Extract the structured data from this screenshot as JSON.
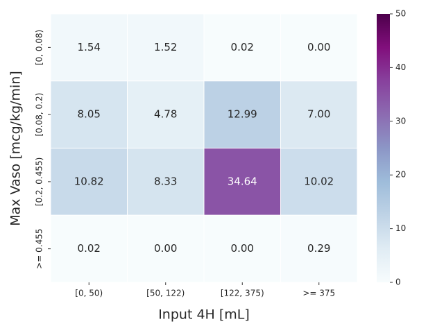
{
  "chart_data": {
    "type": "heatmap",
    "x_label": "Input 4H [mL]",
    "y_label": "Max Vaso [mcg/kg/min]",
    "x_categories": [
      "[0, 50)",
      "[50, 122)",
      "[122, 375)",
      ">= 375"
    ],
    "y_categories": [
      "[0, 0.08)",
      "[0.08, 0.2)",
      "[0.2, 0.455)",
      ">= 0.455"
    ],
    "values": [
      [
        1.54,
        1.52,
        0.02,
        0
      ],
      [
        8.05,
        4.78,
        12.99,
        7
      ],
      [
        10.82,
        8.33,
        34.64,
        10.02
      ],
      [
        0.02,
        0,
        0,
        0.29
      ]
    ],
    "value_labels": [
      [
        "1.54",
        "1.52",
        "0.02",
        "0.00"
      ],
      [
        "8.05",
        "4.78",
        "12.99",
        "7.00"
      ],
      [
        "10.82",
        "8.33",
        "34.64",
        "10.02"
      ],
      [
        "0.02",
        "0.00",
        "0.00",
        "0.29"
      ]
    ],
    "colormap": "BuPu",
    "clim": [
      0,
      50
    ],
    "cticks": [
      0,
      10,
      20,
      30,
      40,
      50
    ]
  }
}
